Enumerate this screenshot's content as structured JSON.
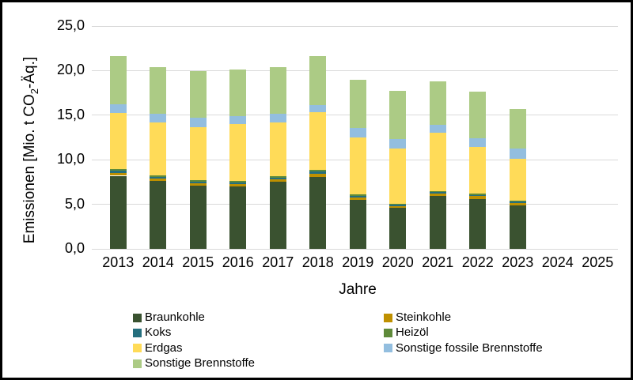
{
  "frame": {
    "border_color": "#000000",
    "background": "#FFFFFF"
  },
  "axes": {
    "y_title": {
      "prefix": "Emissionen [Mio. t CO",
      "sub": "2",
      "suffix": "-Äq.]"
    },
    "x_title": "Jahre",
    "y_ticks": [
      "0,0",
      "5,0",
      "10,0",
      "15,0",
      "20,0",
      "25,0"
    ],
    "grid_color": "#d9d9d9"
  },
  "chart_data": {
    "type": "bar",
    "stacked": true,
    "title": "",
    "xlabel": "Jahre",
    "ylabel": "Emissionen [Mio. t CO2-Äq.]",
    "ylim": [
      0,
      25
    ],
    "y_tick_step": 5,
    "grid": true,
    "legend_position": "bottom",
    "categories": [
      "2013",
      "2014",
      "2015",
      "2016",
      "2017",
      "2018",
      "2019",
      "2020",
      "2021",
      "2022",
      "2023",
      "2024",
      "2025"
    ],
    "series": [
      {
        "name": "Braunkohle",
        "color": "#3A5230",
        "values": [
          8.2,
          7.6,
          7.1,
          7.0,
          7.5,
          8.1,
          5.5,
          4.6,
          5.9,
          5.6,
          4.9,
          null,
          null
        ]
      },
      {
        "name": "Steinkohle",
        "color": "#BF9000",
        "values": [
          0.3,
          0.3,
          0.25,
          0.25,
          0.3,
          0.35,
          0.3,
          0.2,
          0.3,
          0.3,
          0.25,
          null,
          null
        ]
      },
      {
        "name": "Koks",
        "color": "#256F7E",
        "values": [
          0.25,
          0.2,
          0.18,
          0.2,
          0.2,
          0.25,
          0.15,
          0.13,
          0.15,
          0.15,
          0.13,
          null,
          null
        ]
      },
      {
        "name": "Heizöl",
        "color": "#5F8A3A",
        "values": [
          0.2,
          0.18,
          0.15,
          0.15,
          0.16,
          0.2,
          0.15,
          0.12,
          0.15,
          0.15,
          0.12,
          null,
          null
        ]
      },
      {
        "name": "Erdgas",
        "color": "#FFDB58",
        "values": [
          6.3,
          5.9,
          5.95,
          6.4,
          6.0,
          6.4,
          6.4,
          6.2,
          6.55,
          5.2,
          4.7,
          null,
          null
        ]
      },
      {
        "name": "Sonstige fossile Brennstoffe",
        "color": "#93BEDF",
        "values": [
          1.0,
          1.0,
          1.05,
          0.9,
          1.0,
          0.8,
          1.05,
          1.05,
          0.85,
          1.05,
          1.2,
          null,
          null
        ]
      },
      {
        "name": "Sonstige Brennstoffe",
        "color": "#ACCB85",
        "values": [
          5.4,
          5.2,
          5.3,
          5.25,
          5.25,
          5.55,
          5.4,
          5.4,
          4.9,
          5.15,
          4.4,
          null,
          null
        ]
      }
    ],
    "legend_columns": [
      [
        "Braunkohle",
        "Koks",
        "Erdgas",
        "Sonstige Brennstoffe"
      ],
      [
        "Steinkohle",
        "Heizöl",
        "Sonstige fossile Brennstoffe"
      ]
    ]
  }
}
